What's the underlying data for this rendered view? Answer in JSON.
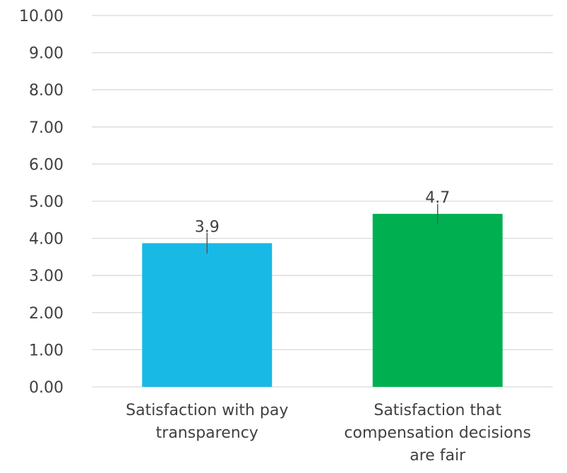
{
  "chart_data": {
    "type": "bar",
    "categories": [
      [
        "Satisfaction with pay",
        "transparency"
      ],
      [
        "Satisfaction that",
        "compensation decisions",
        "are fair"
      ]
    ],
    "series": [
      {
        "values": [
          3.87,
          4.66
        ],
        "data_labels": [
          "3.9",
          "4.7"
        ],
        "colors": [
          "#19b9e6",
          "#00b050"
        ],
        "error_bars": [
          0.28,
          0.27
        ]
      }
    ],
    "y_ticks": [
      "0.00",
      "1.00",
      "2.00",
      "3.00",
      "4.00",
      "5.00",
      "6.00",
      "7.00",
      "8.00",
      "9.00",
      "10.00"
    ],
    "ylim": [
      0,
      10
    ],
    "grid": true,
    "legend": "none",
    "gridline_color": "#d9d9d9",
    "text_color": "#404040",
    "errorbar_color": "#595959"
  }
}
